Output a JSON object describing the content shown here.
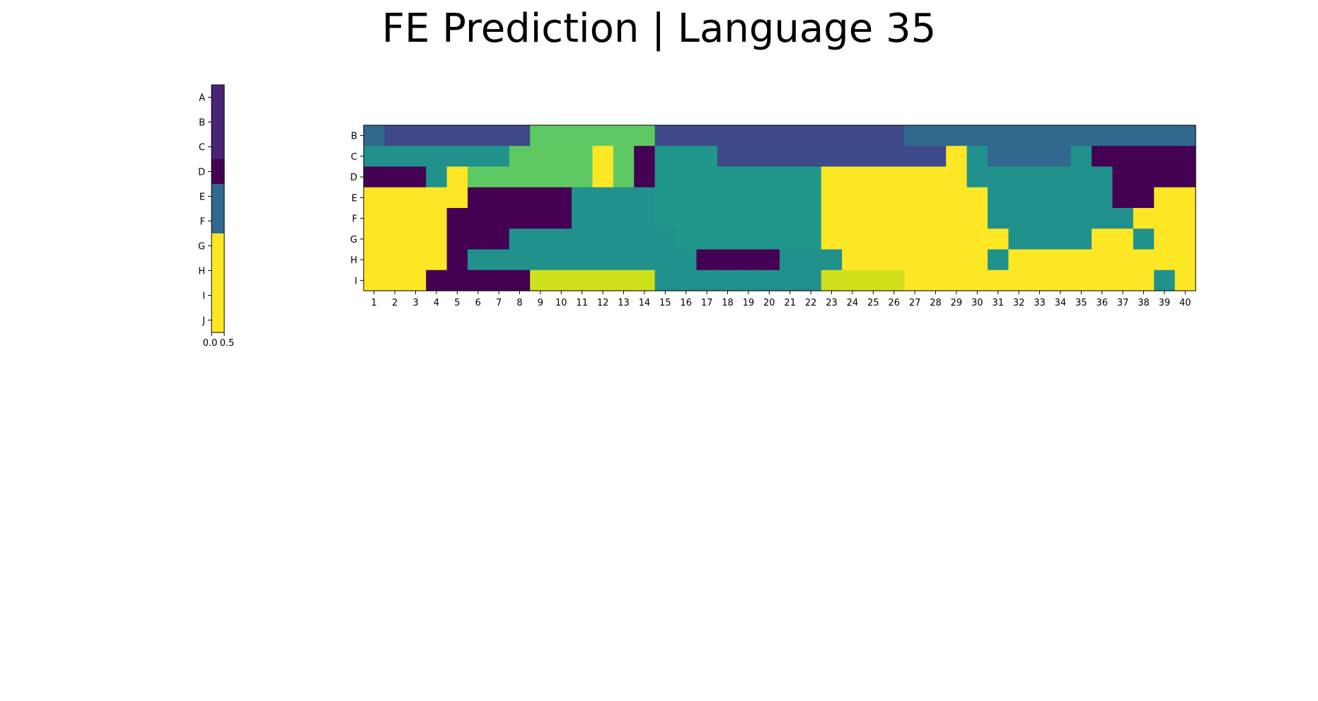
{
  "title": "FE Prediction | Language 35",
  "colors": {
    "0": "#440154",
    "1": "#482475",
    "2": "#3e4a89",
    "3": "#31688e",
    "4": "#21918c",
    "5": "#1f988b",
    "6": "#5ec962",
    "7": "#d0e11c",
    "8": "#fde725"
  },
  "chart_data": [
    {
      "type": "heatmap",
      "name": "side-strip",
      "rows": [
        "A",
        "B",
        "C",
        "D",
        "E",
        "F",
        "G",
        "H",
        "I",
        "J"
      ],
      "columns": [
        "0"
      ],
      "xticks": [
        "0.0",
        "0.5"
      ],
      "values": [
        [
          1
        ],
        [
          1
        ],
        [
          1
        ],
        [
          0
        ],
        [
          3
        ],
        [
          3
        ],
        [
          8
        ],
        [
          8
        ],
        [
          8
        ],
        [
          8
        ]
      ]
    },
    {
      "type": "heatmap",
      "name": "main-heatmap",
      "rows": [
        "B",
        "C",
        "D",
        "E",
        "F",
        "G",
        "H",
        "I"
      ],
      "columns": [
        "1",
        "2",
        "3",
        "4",
        "5",
        "6",
        "7",
        "8",
        "9",
        "10",
        "11",
        "12",
        "13",
        "14",
        "15",
        "16",
        "17",
        "18",
        "19",
        "20",
        "21",
        "22",
        "23",
        "24",
        "25",
        "26",
        "27",
        "28",
        "29",
        "30",
        "31",
        "32",
        "33",
        "34",
        "35",
        "36",
        "37",
        "38",
        "39",
        "40"
      ],
      "values": [
        [
          3,
          2,
          2,
          2,
          2,
          2,
          2,
          2,
          6,
          6,
          6,
          6,
          6,
          6,
          2,
          2,
          2,
          2,
          2,
          2,
          2,
          2,
          2,
          2,
          2,
          2,
          3,
          3,
          3,
          3,
          3,
          3,
          3,
          3,
          3,
          3,
          3,
          3,
          3,
          3
        ],
        [
          4,
          4,
          4,
          4,
          4,
          4,
          4,
          6,
          6,
          6,
          6,
          8,
          6,
          0,
          5,
          5,
          5,
          2,
          2,
          2,
          2,
          2,
          2,
          2,
          2,
          2,
          2,
          2,
          8,
          4,
          3,
          3,
          3,
          3,
          4,
          0,
          0,
          0,
          0,
          0
        ],
        [
          0,
          0,
          0,
          4,
          8,
          6,
          6,
          6,
          6,
          6,
          6,
          8,
          6,
          0,
          5,
          5,
          5,
          5,
          5,
          5,
          5,
          5,
          8,
          8,
          8,
          8,
          8,
          8,
          8,
          4,
          4,
          4,
          4,
          4,
          4,
          4,
          0,
          0,
          0,
          0
        ],
        [
          8,
          8,
          8,
          8,
          8,
          0,
          0,
          0,
          0,
          0,
          4,
          4,
          4,
          4,
          5,
          5,
          5,
          5,
          5,
          5,
          5,
          5,
          8,
          8,
          8,
          8,
          8,
          8,
          8,
          8,
          4,
          4,
          4,
          4,
          4,
          4,
          0,
          0,
          8,
          8
        ],
        [
          8,
          8,
          8,
          8,
          0,
          0,
          0,
          0,
          0,
          0,
          4,
          4,
          4,
          4,
          5,
          5,
          5,
          5,
          5,
          5,
          5,
          5,
          8,
          8,
          8,
          8,
          8,
          8,
          8,
          8,
          4,
          4,
          4,
          4,
          4,
          4,
          4,
          8,
          8,
          8
        ],
        [
          8,
          8,
          8,
          8,
          0,
          0,
          0,
          4,
          4,
          4,
          4,
          4,
          4,
          4,
          4,
          5,
          5,
          5,
          5,
          5,
          5,
          5,
          8,
          8,
          8,
          8,
          8,
          8,
          8,
          8,
          8,
          4,
          4,
          4,
          4,
          8,
          8,
          4,
          8,
          8
        ],
        [
          8,
          8,
          8,
          8,
          0,
          4,
          4,
          4,
          4,
          4,
          4,
          4,
          4,
          4,
          4,
          4,
          0,
          0,
          0,
          0,
          4,
          4,
          4,
          8,
          8,
          8,
          8,
          8,
          8,
          8,
          4,
          8,
          8,
          8,
          8,
          8,
          8,
          8,
          8,
          8
        ],
        [
          8,
          8,
          8,
          0,
          0,
          0,
          0,
          0,
          7,
          7,
          7,
          7,
          7,
          7,
          4,
          4,
          4,
          4,
          4,
          4,
          4,
          4,
          7,
          7,
          7,
          7,
          8,
          8,
          8,
          8,
          8,
          8,
          8,
          8,
          8,
          8,
          8,
          8,
          4,
          8
        ]
      ]
    }
  ]
}
